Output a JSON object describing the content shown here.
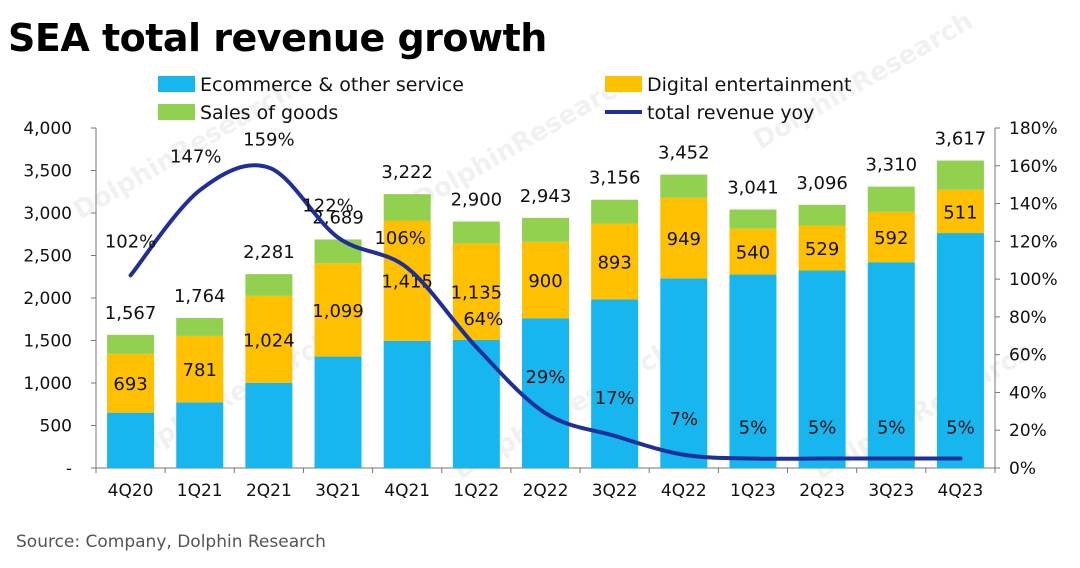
{
  "title": "SEA total revenue growth",
  "source": "Source: Company, Dolphin Research",
  "watermark": "DolphinResearch",
  "colors": {
    "ecommerce": "#17b6ee",
    "digital": "#ffc000",
    "goods": "#92d050",
    "yoy": "#1f2f9a"
  },
  "chart_data": {
    "type": "bar",
    "stacked": true,
    "categories": [
      "4Q20",
      "1Q21",
      "2Q21",
      "3Q21",
      "4Q21",
      "1Q22",
      "2Q22",
      "3Q22",
      "4Q22",
      "1Q23",
      "2Q23",
      "3Q23",
      "4Q23"
    ],
    "series": [
      {
        "name": "Ecommerce & other service",
        "values": [
          651,
          773,
          1002,
          1311,
          1497,
          1508,
          1762,
          1984,
          2232,
          2276,
          2324,
          2421,
          2764
        ]
      },
      {
        "name": "Digital entertainment",
        "values": [
          693,
          781,
          1024,
          1099,
          1415,
          1135,
          900,
          893,
          949,
          540,
          529,
          592,
          511
        ]
      },
      {
        "name": "Sales of goods",
        "values": [
          223,
          210,
          255,
          279,
          310,
          257,
          281,
          279,
          271,
          225,
          243,
          297,
          342
        ]
      }
    ],
    "totals": [
      "1,567",
      "1,764",
      "2,281",
      "2,689",
      "3,222",
      "2,900",
      "2,943",
      "3,156",
      "3,452",
      "3,041",
      "3,096",
      "3,310",
      "3,617"
    ],
    "totals_values": [
      1567,
      1764,
      2281,
      2689,
      3222,
      2900,
      2943,
      3156,
      3452,
      3041,
      3096,
      3310,
      3617
    ],
    "digital_labels": [
      "693",
      "781",
      "1,024",
      "1,099",
      "1,415",
      "1,135",
      "900",
      "893",
      "949",
      "540",
      "529",
      "592",
      "511"
    ],
    "line": {
      "name": "total revenue yoy",
      "values": [
        102,
        147,
        159,
        122,
        106,
        64,
        29,
        17,
        7,
        5,
        5,
        5,
        5
      ],
      "labels": [
        "102%",
        "147%",
        "159%",
        "122%",
        "106%",
        "64%",
        "29%",
        "17%",
        "7%",
        "5%",
        "5%",
        "5%",
        "5%"
      ]
    },
    "y_left": {
      "min": 0,
      "max": 4000,
      "ticks": [
        0,
        500,
        1000,
        1500,
        2000,
        2500,
        3000,
        3500,
        4000
      ],
      "tick_labels": [
        "-",
        "500",
        "1,000",
        "1,500",
        "2,000",
        "2,500",
        "3,000",
        "3,500",
        "4,000"
      ]
    },
    "y_right": {
      "min": 0,
      "max": 180,
      "ticks": [
        0,
        20,
        40,
        60,
        80,
        100,
        120,
        140,
        160,
        180
      ],
      "tick_labels": [
        "0%",
        "20%",
        "40%",
        "60%",
        "80%",
        "100%",
        "120%",
        "140%",
        "160%",
        "180%"
      ]
    },
    "legend": [
      {
        "label": "Ecommerce & other service",
        "kind": "box",
        "color": "#17b6ee"
      },
      {
        "label": "Digital entertainment",
        "kind": "box",
        "color": "#ffc000"
      },
      {
        "label": "Sales of goods",
        "kind": "box",
        "color": "#92d050"
      },
      {
        "label": "total revenue yoy",
        "kind": "line",
        "color": "#1f2f9a"
      }
    ],
    "legend_position": "top",
    "grid": false
  }
}
